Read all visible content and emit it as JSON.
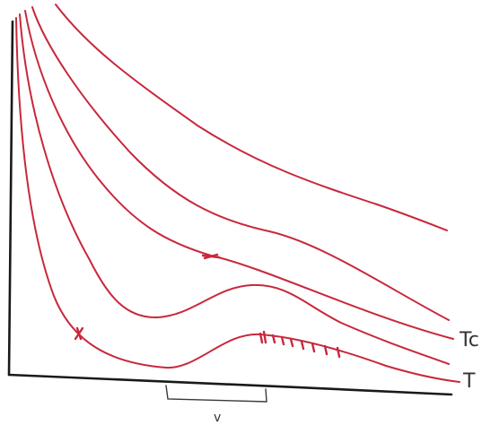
{
  "labels": {
    "critical_isotherm": "Tc",
    "lowest_isotherm": "T",
    "bracket": "v"
  },
  "colors": {
    "ink": "#c8283c",
    "axis": "#1a1a1a",
    "label_ink": "#333333"
  }
}
